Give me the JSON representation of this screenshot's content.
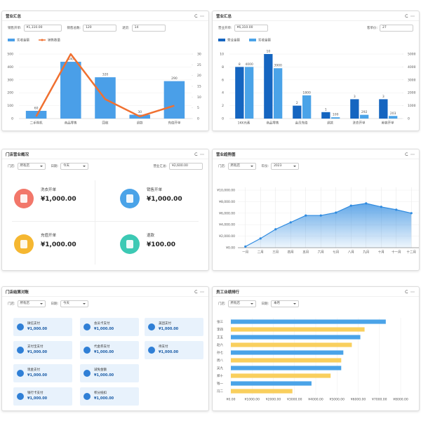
{
  "panels": [
    {
      "title": "营业汇总",
      "filters": [
        {
          "label": "销售开单:",
          "value": "¥1,110.00"
        },
        {
          "label": "销售总数:",
          "value": "120"
        },
        {
          "label": "退货:",
          "value": "14"
        }
      ],
      "chart": {
        "type": "combo",
        "categories": [
          "二手购机",
          "商品零售",
          "回收",
          "退款",
          "充值开单"
        ],
        "series": [
          {
            "name": "实收金额",
            "color": "#4a9fe8",
            "type": "bar",
            "values": [
              60,
              440,
              320,
              30,
              290
            ]
          },
          {
            "name": "销售数量",
            "color": "#f07030",
            "type": "line",
            "axis": "y2",
            "values": [
              1,
              30,
              9,
              1,
              6
            ]
          }
        ],
        "ylim": [
          0,
          500
        ],
        "yticks": [
          0,
          100,
          200,
          300,
          400,
          500
        ],
        "y2lim": [
          0,
          30
        ],
        "y2ticks": [
          0,
          5,
          10,
          15,
          20,
          25,
          30
        ]
      }
    },
    {
      "title": "营业汇总",
      "filters": [
        {
          "label": "营业开单:",
          "value": "¥6,310.00"
        },
        {
          "label": "客单价:",
          "value": "27"
        }
      ],
      "chart": {
        "type": "combo",
        "categories": [
          "1KK元素",
          "商品零售",
          "会员充值",
          "退款",
          "洗衣开单",
          "美容开单"
        ],
        "series": [
          {
            "name": "营业金额",
            "color": "#1565c0",
            "type": "bar",
            "values": [
              8,
              10,
              2,
              1,
              3,
              3
            ]
          },
          {
            "name": "实收金额",
            "color": "#4aa3e8",
            "type": "bar",
            "axis": "y2",
            "values": [
              4000,
              3900,
              1800,
              100,
              292,
              203
            ]
          }
        ],
        "ylim": [
          0,
          10
        ],
        "yticks": [
          0,
          2,
          4,
          6,
          8,
          10
        ],
        "y2lim": [
          0,
          5000
        ],
        "y2ticks": [
          0,
          1000,
          2000,
          3000,
          4000,
          5000
        ]
      }
    },
    {
      "title": "门店营业概况",
      "filters": [
        {
          "label": "门店:",
          "value": "所有店"
        },
        {
          "label": "日期:",
          "value": "今天"
        },
        {
          "label": "营业汇总:",
          "value": "¥2,600.00"
        }
      ],
      "stats": [
        {
          "label": "洗衣开单",
          "value": "¥1,000.00",
          "color": "#f2776a"
        },
        {
          "label": "销售开单",
          "value": "¥1,000.00",
          "color": "#4aa3e8"
        },
        {
          "label": "充值开单",
          "value": "¥1,000.00",
          "color": "#f5b731"
        },
        {
          "label": "退款",
          "value": "¥100.00",
          "color": "#3cc9b4"
        }
      ]
    },
    {
      "title": "营业趋势图",
      "filters": [
        {
          "label": "门店:",
          "value": "所有店"
        },
        {
          "label": "年份:",
          "value": "2023"
        }
      ],
      "chart": {
        "type": "area",
        "categories": [
          "一月",
          "二月",
          "三月",
          "四月",
          "五月",
          "六月",
          "七月",
          "八月",
          "九月",
          "十月",
          "十一月",
          "十二月"
        ],
        "values": [
          200,
          1600,
          3200,
          4400,
          5600,
          5600,
          6100,
          7300,
          7700,
          7100,
          6600,
          6000
        ],
        "color": "#2f8be0",
        "ylim": [
          0,
          10000
        ],
        "yticks": [
          {
            "value": 0,
            "label": "¥0.00"
          },
          {
            "value": 2000,
            "label": "¥2,000.00"
          },
          {
            "value": 4000,
            "label": "¥4,000.00"
          },
          {
            "value": 6000,
            "label": "¥6,000.00"
          },
          {
            "value": 8000,
            "label": "¥8,000.00"
          },
          {
            "value": 10000,
            "label": "¥10,000.00"
          }
        ]
      }
    },
    {
      "title": "门店结算对账",
      "filters": [
        {
          "label": "门店:",
          "value": "所有店"
        },
        {
          "label": "日期:",
          "value": "今天"
        }
      ],
      "rows": [
        [
          {
            "label": "微信支付",
            "value": "¥1,000.00"
          },
          {
            "label": "会员卡支付",
            "value": "¥1,000.00"
          },
          {
            "label": "美团支付",
            "value": "¥1,000.00"
          }
        ],
        [
          {
            "label": "支付宝支付",
            "value": "¥1,000.00"
          },
          {
            "label": "代金券支付",
            "value": "¥1,000.00"
          },
          {
            "label": "待支付",
            "value": "¥1,000.00"
          }
        ],
        [
          {
            "label": "现金支付",
            "value": "¥1,000.00"
          },
          {
            "label": "减免金额",
            "value": "¥1,000.00"
          }
        ],
        [
          {
            "label": "银行卡支付",
            "value": "¥1,000.00"
          },
          {
            "label": "积分抵扣",
            "value": "¥1,000.00"
          }
        ]
      ]
    },
    {
      "title": "员工业绩排行",
      "filters": [
        {
          "label": "门店:",
          "value": "所有店"
        },
        {
          "label": "日期:",
          "value": "本月"
        }
      ],
      "chart": {
        "type": "hbar",
        "categories": [
          "张三",
          "李四",
          "王五",
          "赵六",
          "孙七",
          "周八",
          "吴九",
          "郑十",
          "钱一",
          "冯二"
        ],
        "values": [
          7300,
          6300,
          6100,
          5700,
          5300,
          5200,
          5200,
          4700,
          3800,
          2900
        ],
        "colors": [
          "#4aa3e8",
          "#f9cf5d",
          "#4aa3e8",
          "#f9cf5d",
          "#4aa3e8",
          "#f9cf5d",
          "#4aa3e8",
          "#f9cf5d",
          "#4aa3e8",
          "#f9cf5d"
        ],
        "xlim": [
          0,
          8000
        ],
        "xticks": [
          {
            "value": 0,
            "label": "¥0.00"
          },
          {
            "value": 1000,
            "label": "¥1000.00"
          },
          {
            "value": 2000,
            "label": "¥2000.00"
          },
          {
            "value": 3000,
            "label": "¥3000.00"
          },
          {
            "value": 4000,
            "label": "¥4000.00"
          },
          {
            "value": 5000,
            "label": "¥5000.00"
          },
          {
            "value": 6000,
            "label": "¥6000.00"
          },
          {
            "value": 7000,
            "label": "¥7000.00"
          },
          {
            "value": 8000,
            "label": "¥8000.00"
          }
        ]
      }
    }
  ]
}
